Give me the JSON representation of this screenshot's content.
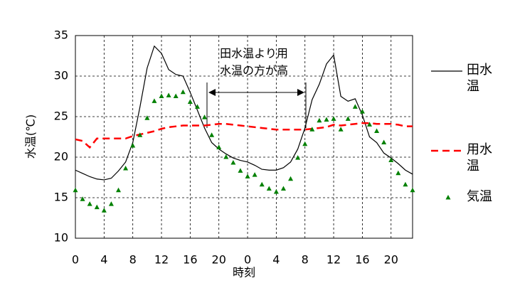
{
  "chart_data": {
    "type": "line",
    "x_label": "時刻",
    "y_label": "水温(℃)",
    "annotation": [
      "田水温より用",
      "水温の方が高"
    ],
    "x": [
      0,
      1,
      2,
      3,
      4,
      5,
      6,
      7,
      8,
      9,
      10,
      11,
      12,
      13,
      14,
      15,
      16,
      17,
      18,
      19,
      20,
      21,
      22,
      23,
      24,
      25,
      26,
      27,
      28,
      29,
      30,
      31,
      32,
      33,
      34,
      35,
      36,
      37,
      38,
      39,
      40,
      41,
      42,
      43,
      44,
      45,
      46,
      47
    ],
    "xlim": [
      0,
      47
    ],
    "xticks": [
      0,
      4,
      8,
      12,
      16,
      20,
      {
        "value": 24,
        "label": "0"
      },
      {
        "value": 28,
        "label": "4"
      },
      {
        "value": 32,
        "label": "8"
      },
      {
        "value": 36,
        "label": "12"
      },
      {
        "value": 40,
        "label": "16"
      },
      {
        "value": 44,
        "label": "20"
      }
    ],
    "ylim": [
      10,
      35
    ],
    "yticks": [
      10,
      15,
      20,
      25,
      30,
      35
    ],
    "grid": true,
    "legend": "right",
    "series": [
      {
        "name": "田水温",
        "color": "#000000",
        "line_style": "solid",
        "values": [
          18.4,
          18.0,
          17.6,
          17.3,
          17.2,
          17.4,
          18.3,
          19.4,
          21.8,
          26.2,
          31.0,
          33.7,
          32.8,
          30.8,
          30.2,
          30.0,
          28.0,
          25.8,
          23.6,
          21.8,
          21.0,
          20.4,
          19.9,
          19.6,
          19.4,
          19.0,
          18.5,
          18.4,
          18.4,
          18.7,
          19.4,
          21.0,
          23.6,
          27.1,
          29.0,
          31.5,
          32.6,
          27.5,
          26.9,
          27.2,
          25.2,
          22.5,
          21.8,
          20.5,
          19.9,
          19.2,
          18.4,
          17.9
        ]
      },
      {
        "name": "用水温",
        "color": "#ff0000",
        "line_style": "dashed",
        "values": [
          22.2,
          22.0,
          21.2,
          22.3,
          22.3,
          22.3,
          22.3,
          22.3,
          22.6,
          22.8,
          23.0,
          23.2,
          23.5,
          23.7,
          23.8,
          23.9,
          23.9,
          23.9,
          23.9,
          24.0,
          24.1,
          24.1,
          24.0,
          23.9,
          23.8,
          23.7,
          23.6,
          23.5,
          23.4,
          23.4,
          23.4,
          23.4,
          23.4,
          23.5,
          23.6,
          23.7,
          24.0,
          23.9,
          24.0,
          24.1,
          24.2,
          24.2,
          24.1,
          24.1,
          24.1,
          24.0,
          23.8,
          23.8
        ]
      },
      {
        "name": "気温",
        "color": "#008000",
        "marker": "triangle",
        "values": [
          15.9,
          14.8,
          14.2,
          13.8,
          13.4,
          14.2,
          15.9,
          18.6,
          21.4,
          22.7,
          24.8,
          26.9,
          27.5,
          27.6,
          27.5,
          28.0,
          26.8,
          26.2,
          24.9,
          22.7,
          21.2,
          20.0,
          19.3,
          18.3,
          17.6,
          17.8,
          16.6,
          16.1,
          15.7,
          16.1,
          17.3,
          19.9,
          21.6,
          23.4,
          24.5,
          24.6,
          24.7,
          23.4,
          24.7,
          26.2,
          25.6,
          24.0,
          23.2,
          21.8,
          19.6,
          18.0,
          16.6,
          15.9
        ]
      }
    ]
  }
}
